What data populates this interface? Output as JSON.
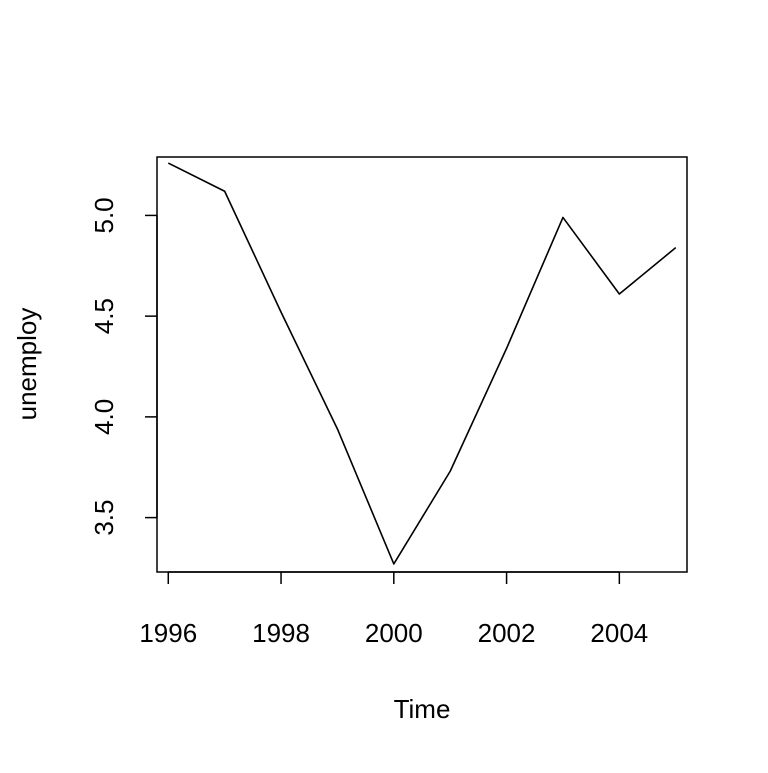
{
  "chart_data": {
    "type": "line",
    "title": "",
    "xlabel": "Time",
    "ylabel": "unemploy",
    "x": [
      1996,
      1997,
      1998,
      1999,
      2000,
      2001,
      2002,
      2003,
      2004,
      2005
    ],
    "series": [
      {
        "values": [
          5.26,
          5.12,
          4.52,
          3.94,
          3.27,
          3.73,
          4.34,
          4.99,
          4.61,
          4.84
        ]
      }
    ],
    "xlim": [
      1995.8,
      2005.2
    ],
    "ylim": [
      3.23,
      5.29
    ],
    "xticks": [
      1996,
      1998,
      2000,
      2002,
      2004
    ],
    "xtick_labels": [
      "1996",
      "1998",
      "2000",
      "2002",
      "2004"
    ],
    "yticks": [
      3.5,
      4.0,
      4.5,
      5.0
    ],
    "ytick_labels": [
      "3.5",
      "4.0",
      "4.5",
      "5.0"
    ],
    "grid": false,
    "legend": "none",
    "line_color": "#000000"
  }
}
